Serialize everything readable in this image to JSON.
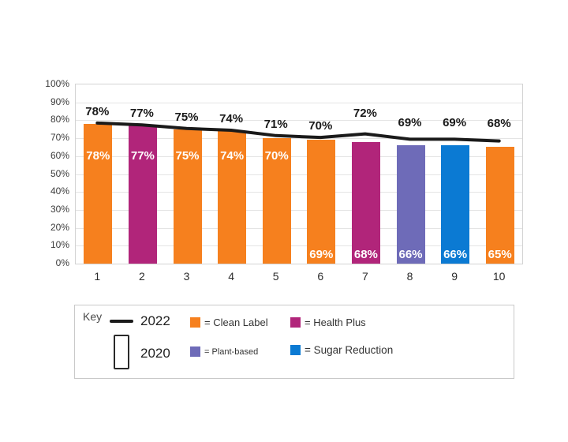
{
  "chart_data": {
    "type": "bar",
    "title": "",
    "xlabel": "",
    "ylabel": "",
    "categories": [
      "1",
      "2",
      "3",
      "4",
      "5",
      "6",
      "7",
      "8",
      "9",
      "10"
    ],
    "series": [
      {
        "name": "2020",
        "type": "bar",
        "values": [
          78,
          77,
          75,
          74,
          70,
          69,
          68,
          66,
          66,
          65
        ],
        "data_labels": [
          "78%",
          "77%",
          "75%",
          "74%",
          "70%",
          "69%",
          "68%",
          "66%",
          "66%",
          "65%"
        ],
        "bar_groups": [
          "Clean Label",
          "Health Plus",
          "Clean Label",
          "Clean Label",
          "Clean Label",
          "Clean Label",
          "Health Plus",
          "Plant-based",
          "Sugar Reduction",
          "Clean Label"
        ]
      },
      {
        "name": "2022",
        "type": "line",
        "values": [
          78,
          77,
          75,
          74,
          71,
          70,
          72,
          69,
          69,
          68
        ],
        "data_labels": [
          "78%",
          "77%",
          "75%",
          "74%",
          "71%",
          "70%",
          "72%",
          "69%",
          "69%",
          "68%"
        ]
      }
    ],
    "ylim": [
      0,
      100
    ],
    "ytick_labels": [
      "0%",
      "10%",
      "20%",
      "30%",
      "40%",
      "50%",
      "60%",
      "70%",
      "80%",
      "90%",
      "100%"
    ],
    "grid": true,
    "legend_position": "bottom",
    "colors": {
      "Clean Label": "#F6801E",
      "Health Plus": "#B1257A",
      "Plant-based": "#6E6BB8",
      "Sugar Reduction": "#0B7AD3",
      "line_2022": "#1A1A1A"
    }
  },
  "key": {
    "title": "Key",
    "line_item_label": "2022",
    "bar_item_label": "2020",
    "items": [
      {
        "label": "= Clean Label",
        "color": "#F6801E"
      },
      {
        "label": "= Health Plus",
        "color": "#B1257A"
      },
      {
        "label": "= Plant-based",
        "color": "#6E6BB8"
      },
      {
        "label": "= Sugar Reduction",
        "color": "#0B7AD3"
      }
    ]
  }
}
